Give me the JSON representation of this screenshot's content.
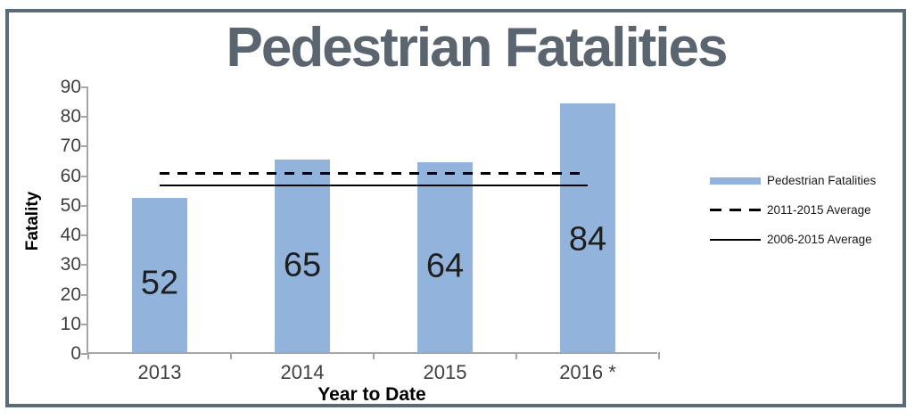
{
  "title": "Pedestrian Fatalities",
  "chart_data": {
    "type": "bar",
    "title": "Pedestrian Fatalities",
    "categories": [
      "2013",
      "2014",
      "2015",
      "2016 *"
    ],
    "series": [
      {
        "name": "Pedestrian Fatalities",
        "kind": "bar",
        "values": [
          52,
          65,
          64,
          84
        ]
      },
      {
        "name": "2011-2015 Average",
        "kind": "line",
        "style": "dashed",
        "value": 61
      },
      {
        "name": "2006-2015 Average",
        "kind": "line",
        "style": "solid",
        "value": 57
      }
    ],
    "xlabel": "Year to Date",
    "ylabel": "Fatality",
    "ylim": [
      0,
      90
    ],
    "ytick_step": 10,
    "grid": false,
    "data_labels": true,
    "legend_position": "right"
  },
  "colors": {
    "bar": "#92B4DC",
    "avg_line": "#000000",
    "frame_border": "#5A6B78",
    "title_text": "#5A6570",
    "axis_line": "#A6A6A6",
    "tick_label": "#3F3F3F",
    "data_label": "#1F1F1F"
  }
}
